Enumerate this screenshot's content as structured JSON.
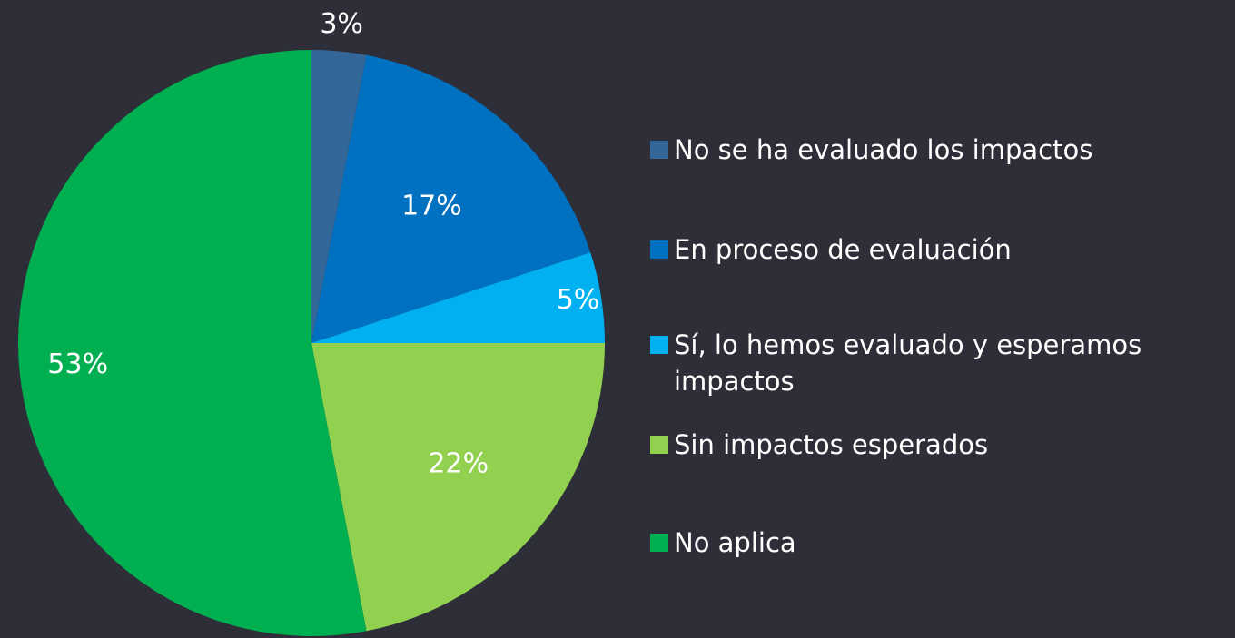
{
  "chart_data": {
    "type": "pie",
    "categories": [
      "No se ha evaluado los impactos",
      "En proceso de evaluación",
      "Sí, lo hemos evaluado y esperamos impactos",
      "Sin impactos esperados",
      "No aplica"
    ],
    "values": [
      3,
      17,
      5,
      22,
      53
    ],
    "value_labels": [
      "3%",
      "17%",
      "5%",
      "22%",
      "53%"
    ],
    "colors": [
      "#336699",
      "#0070c0",
      "#00b0f0",
      "#92d050",
      "#00b050"
    ],
    "legend": "right"
  }
}
